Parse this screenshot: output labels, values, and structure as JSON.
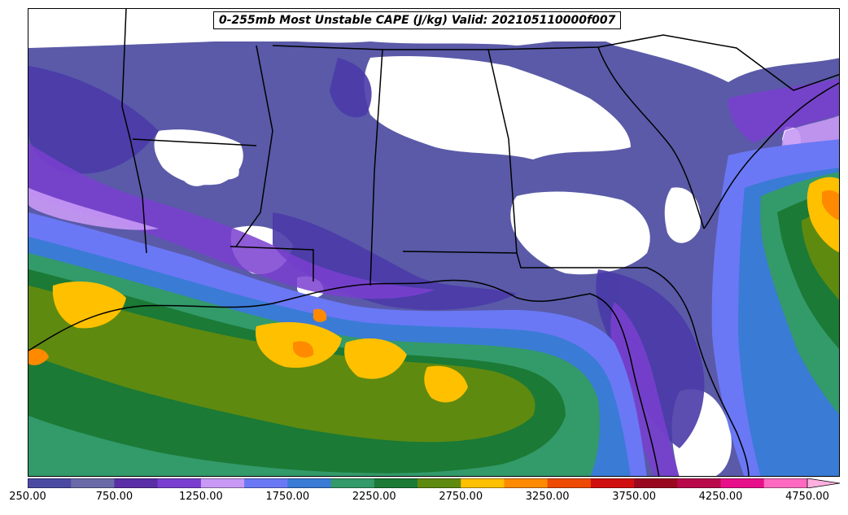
{
  "title": "0-255mb Most Unstable CAPE (J/kg) Valid: 202105110000f007",
  "colorbar": {
    "colors": [
      "#4b4aa3",
      "#6b6aa8",
      "#5a2ea6",
      "#7a3fd0",
      "#c899f5",
      "#6a78f5",
      "#3a7bd5",
      "#339a6a",
      "#1b7a35",
      "#5f8a10",
      "#ffc000",
      "#ff8a00",
      "#ee4a00",
      "#d01010",
      "#9a0820",
      "#b80a4a",
      "#e8108a",
      "#ff6ac0",
      "#ffb0e0"
    ],
    "tick_labels": [
      "250.00",
      "750.00",
      "1250.00",
      "1750.00",
      "2250.00",
      "2750.00",
      "3250.00",
      "3750.00",
      "4250.00",
      "4750.00"
    ],
    "extend": "max"
  },
  "field_levels": {
    "base": "#4b4aa3"
  }
}
